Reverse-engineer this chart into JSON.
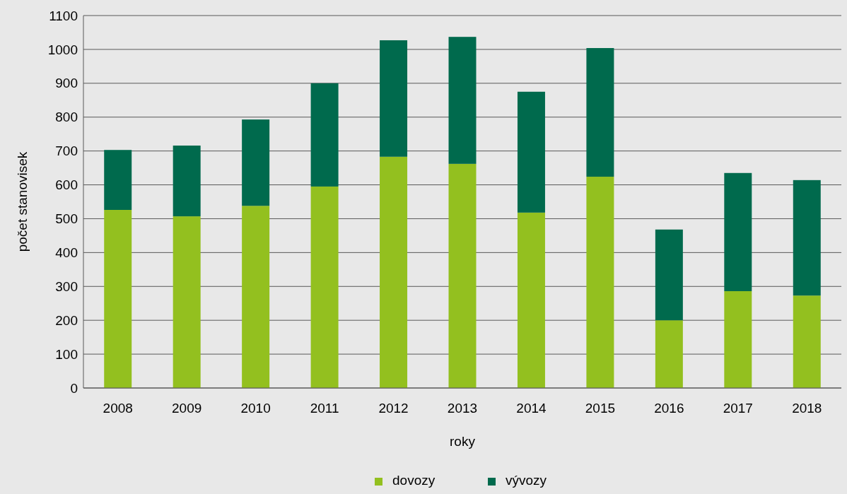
{
  "chart_data": {
    "type": "bar",
    "stacked": true,
    "xlabel": "roky",
    "ylabel": "počet stanovisek",
    "categories": [
      "2008",
      "2009",
      "2010",
      "2011",
      "2012",
      "2013",
      "2014",
      "2015",
      "2016",
      "2017",
      "2018"
    ],
    "series": [
      {
        "name": "dovozy",
        "color": "#93c01f",
        "values": [
          526,
          507,
          538,
          595,
          683,
          662,
          518,
          624,
          200,
          286,
          273
        ]
      },
      {
        "name": "vývozy",
        "color": "#006a4d",
        "values": [
          177,
          209,
          255,
          305,
          344,
          375,
          357,
          380,
          268,
          349,
          341
        ]
      }
    ],
    "ylim": [
      0,
      1100
    ],
    "yticks": [
      0,
      100,
      200,
      300,
      400,
      500,
      600,
      700,
      800,
      900,
      1000,
      1100
    ],
    "grid": "y",
    "legend": "bottom"
  }
}
